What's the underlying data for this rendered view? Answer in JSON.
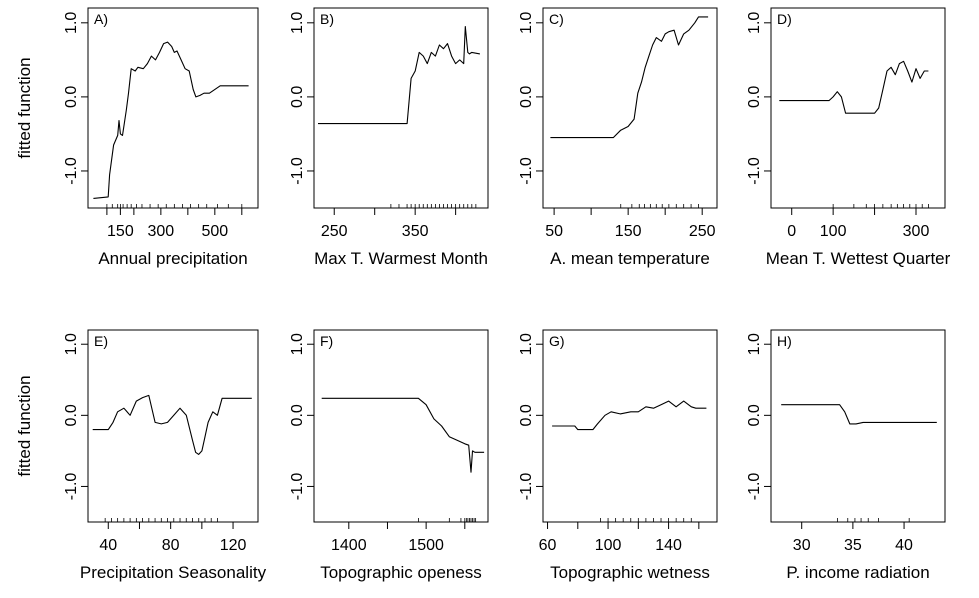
{
  "chart_data": [
    {
      "type": "line",
      "panel_label": "A)",
      "xlabel": "Annual precipitation",
      "ylabel": "fitted function",
      "xlim": [
        30,
        660
      ],
      "ylim": [
        -1.5,
        1.2
      ],
      "xticks": [
        100,
        300,
        500
      ],
      "xtick_labels": [
        "",
        "300",
        "500"
      ],
      "xtick_values_minor": [
        100,
        150,
        200,
        300,
        400,
        500,
        600
      ],
      "xtick_labels_full": [
        "",
        "150",
        "",
        "300",
        "",
        "500",
        ""
      ],
      "yticks": [
        -1.0,
        0.0,
        1.0
      ],
      "ytick_labels": [
        "-1.0",
        "0.0",
        "1.0"
      ],
      "series": [
        {
          "x": [
            50,
            105,
            110,
            125,
            140,
            145,
            150,
            158,
            165,
            172,
            180,
            190,
            205,
            215,
            235,
            250,
            265,
            280,
            295,
            310,
            325,
            340,
            350,
            360,
            375,
            390,
            405,
            420,
            430,
            445,
            460,
            480,
            520,
            560,
            625
          ],
          "y": [
            -1.37,
            -1.35,
            -1.05,
            -0.65,
            -0.52,
            -0.32,
            -0.5,
            -0.52,
            -0.35,
            -0.18,
            0.05,
            0.38,
            0.35,
            0.4,
            0.38,
            0.45,
            0.55,
            0.5,
            0.6,
            0.72,
            0.74,
            0.68,
            0.6,
            0.62,
            0.5,
            0.38,
            0.35,
            0.1,
            0.0,
            0.02,
            0.05,
            0.05,
            0.15,
            0.15,
            0.15
          ]
        }
      ],
      "rug": [
        100,
        120,
        140,
        150,
        160,
        175,
        190,
        210,
        230,
        260,
        290,
        320,
        350,
        380,
        410,
        440,
        470,
        510,
        550,
        600
      ]
    },
    {
      "type": "line",
      "panel_label": "B)",
      "xlabel": "Max T. Warmest Month",
      "ylabel": "",
      "xlim": [
        225,
        440
      ],
      "ylim": [
        -1.5,
        1.2
      ],
      "xticks": [
        250,
        300,
        350,
        400
      ],
      "xtick_labels": [
        "250",
        "",
        "350",
        ""
      ],
      "yticks": [
        -1.0,
        0.0,
        1.0
      ],
      "ytick_labels": [
        "-1.0",
        "0.0",
        "1.0"
      ],
      "series": [
        {
          "x": [
            230,
            340,
            345,
            350,
            355,
            360,
            365,
            370,
            375,
            380,
            385,
            390,
            395,
            400,
            405,
            410,
            412,
            415,
            417,
            420,
            430
          ],
          "y": [
            -0.36,
            -0.36,
            0.25,
            0.35,
            0.6,
            0.55,
            0.45,
            0.6,
            0.55,
            0.7,
            0.65,
            0.72,
            0.55,
            0.45,
            0.5,
            0.45,
            0.95,
            0.6,
            0.58,
            0.6,
            0.58
          ]
        }
      ],
      "rug": [
        320,
        330,
        340,
        345,
        350,
        355,
        360,
        365,
        370,
        375,
        380,
        385,
        390,
        395,
        400,
        405,
        410,
        415,
        420,
        425
      ]
    },
    {
      "type": "line",
      "panel_label": "C)",
      "xlabel": "A. mean temperature",
      "ylabel": "",
      "xlim": [
        35,
        270
      ],
      "ylim": [
        -1.5,
        1.2
      ],
      "xticks": [
        50,
        100,
        150,
        200,
        250
      ],
      "xtick_labels": [
        "50",
        "",
        "150",
        "",
        "250"
      ],
      "yticks": [
        -1.0,
        0.0,
        1.0
      ],
      "ytick_labels": [
        "-1.0",
        "0.0",
        "1.0"
      ],
      "series": [
        {
          "x": [
            45,
            130,
            140,
            150,
            158,
            163,
            168,
            173,
            178,
            183,
            188,
            195,
            200,
            205,
            212,
            218,
            225,
            232,
            240,
            245,
            258
          ],
          "y": [
            -0.55,
            -0.55,
            -0.45,
            -0.4,
            -0.3,
            0.05,
            0.2,
            0.4,
            0.55,
            0.7,
            0.8,
            0.75,
            0.85,
            0.88,
            0.9,
            0.7,
            0.85,
            0.9,
            1.0,
            1.08,
            1.08
          ]
        }
      ],
      "rug": [
        140,
        155,
        165,
        172,
        180,
        188,
        196,
        205,
        215,
        225,
        235,
        245
      ]
    },
    {
      "type": "line",
      "panel_label": "D)",
      "xlabel": "Mean T. Wettest Quarter",
      "ylabel": "",
      "xlim": [
        -50,
        370
      ],
      "ylim": [
        -1.5,
        1.2
      ],
      "xticks": [
        0,
        100,
        200,
        300
      ],
      "xtick_labels": [
        "0",
        "100",
        "",
        "300"
      ],
      "yticks": [
        -1.0,
        0.0,
        1.0
      ],
      "ytick_labels": [
        "-1.0",
        "0.0",
        "1.0"
      ],
      "series": [
        {
          "x": [
            -30,
            90,
            100,
            110,
            120,
            130,
            200,
            210,
            220,
            230,
            240,
            250,
            260,
            270,
            280,
            290,
            300,
            310,
            320,
            330
          ],
          "y": [
            -0.05,
            -0.05,
            0.0,
            0.07,
            0.0,
            -0.22,
            -0.22,
            -0.15,
            0.1,
            0.35,
            0.4,
            0.3,
            0.45,
            0.48,
            0.35,
            0.2,
            0.38,
            0.25,
            0.35,
            0.35
          ]
        }
      ],
      "rug": [
        100,
        150,
        180,
        200,
        220,
        240,
        255,
        270,
        285,
        300,
        315,
        330
      ]
    },
    {
      "type": "line",
      "panel_label": "E)",
      "xlabel": "Precipitation Seasonality",
      "ylabel": "fitted function",
      "xlim": [
        27,
        136
      ],
      "ylim": [
        -1.5,
        1.2
      ],
      "xticks": [
        40,
        60,
        80,
        100,
        120
      ],
      "xtick_labels": [
        "40",
        "",
        "80",
        "",
        "120"
      ],
      "yticks": [
        -1.0,
        0.0,
        1.0
      ],
      "ytick_labels": [
        "-1.0",
        "0.0",
        "1.0"
      ],
      "series": [
        {
          "x": [
            30,
            40,
            43,
            46,
            50,
            54,
            58,
            62,
            66,
            70,
            74,
            78,
            82,
            86,
            90,
            94,
            96,
            98,
            100,
            102,
            104,
            107,
            110,
            113,
            132
          ],
          "y": [
            -0.2,
            -0.2,
            -0.1,
            0.05,
            0.1,
            0.0,
            0.2,
            0.25,
            0.28,
            -0.1,
            -0.12,
            -0.1,
            0.0,
            0.1,
            0.0,
            -0.35,
            -0.52,
            -0.55,
            -0.5,
            -0.3,
            -0.1,
            0.05,
            0.0,
            0.24,
            0.24
          ]
        }
      ],
      "rug": [
        38,
        42,
        46,
        50,
        54,
        58,
        62,
        66,
        70,
        74,
        78,
        82,
        86,
        90,
        94,
        98,
        102,
        106,
        110
      ]
    },
    {
      "type": "line",
      "panel_label": "F)",
      "xlabel": "Topographic openess",
      "ylabel": "",
      "xlim": [
        1355,
        1580
      ],
      "ylim": [
        -1.5,
        1.2
      ],
      "xticks": [
        1400,
        1450,
        1500,
        1550
      ],
      "xtick_labels": [
        "1400",
        "",
        "1500",
        ""
      ],
      "yticks": [
        -1.0,
        0.0,
        1.0
      ],
      "ytick_labels": [
        "-1.0",
        "0.0",
        "1.0"
      ],
      "series": [
        {
          "x": [
            1365,
            1490,
            1500,
            1510,
            1520,
            1530,
            1540,
            1550,
            1555,
            1558,
            1560,
            1563,
            1565,
            1575
          ],
          "y": [
            0.24,
            0.24,
            0.15,
            -0.05,
            -0.15,
            -0.3,
            -0.35,
            -0.4,
            -0.42,
            -0.8,
            -0.5,
            -0.52,
            -0.52,
            -0.52
          ]
        }
      ],
      "rug": [
        1490,
        1530,
        1545,
        1550,
        1552,
        1554,
        1556,
        1558,
        1560,
        1562,
        1564
      ]
    },
    {
      "type": "line",
      "panel_label": "G)",
      "xlabel": "Topographic wetness",
      "ylabel": "",
      "xlim": [
        57,
        172
      ],
      "ylim": [
        -1.5,
        1.2
      ],
      "xticks": [
        60,
        80,
        100,
        120,
        140,
        160
      ],
      "xtick_labels": [
        "60",
        "",
        "100",
        "",
        "140",
        ""
      ],
      "yticks": [
        -1.0,
        0.0,
        1.0
      ],
      "ytick_labels": [
        "-1.0",
        "0.0",
        "1.0"
      ],
      "series": [
        {
          "x": [
            63,
            78,
            80,
            90,
            93,
            98,
            102,
            108,
            115,
            120,
            125,
            130,
            135,
            140,
            145,
            150,
            155,
            158,
            165
          ],
          "y": [
            -0.15,
            -0.15,
            -0.2,
            -0.2,
            -0.12,
            0.0,
            0.05,
            0.02,
            0.05,
            0.05,
            0.12,
            0.1,
            0.15,
            0.2,
            0.12,
            0.2,
            0.12,
            0.1,
            0.1
          ]
        }
      ],
      "rug": [
        95,
        100,
        105,
        110,
        115,
        120,
        125,
        130,
        135,
        140,
        145,
        150,
        155
      ]
    },
    {
      "type": "line",
      "panel_label": "H)",
      "xlabel": "P. income radiation",
      "ylabel": "",
      "xlim": [
        27,
        44
      ],
      "ylim": [
        -1.5,
        1.2
      ],
      "xticks": [
        30,
        35,
        40
      ],
      "xtick_labels": [
        "30",
        "35",
        "40"
      ],
      "yticks": [
        -1.0,
        0.0,
        1.0
      ],
      "ytick_labels": [
        "-1.0",
        "0.0",
        "1.0"
      ],
      "series": [
        {
          "x": [
            28,
            33.7,
            34.2,
            34.7,
            35.3,
            36,
            43.2
          ],
          "y": [
            0.15,
            0.15,
            0.05,
            -0.12,
            -0.12,
            -0.1,
            -0.1
          ]
        }
      ],
      "rug": [
        33.5,
        34.5,
        35.2,
        35.8,
        36.5,
        37.5,
        40.5
      ]
    }
  ]
}
